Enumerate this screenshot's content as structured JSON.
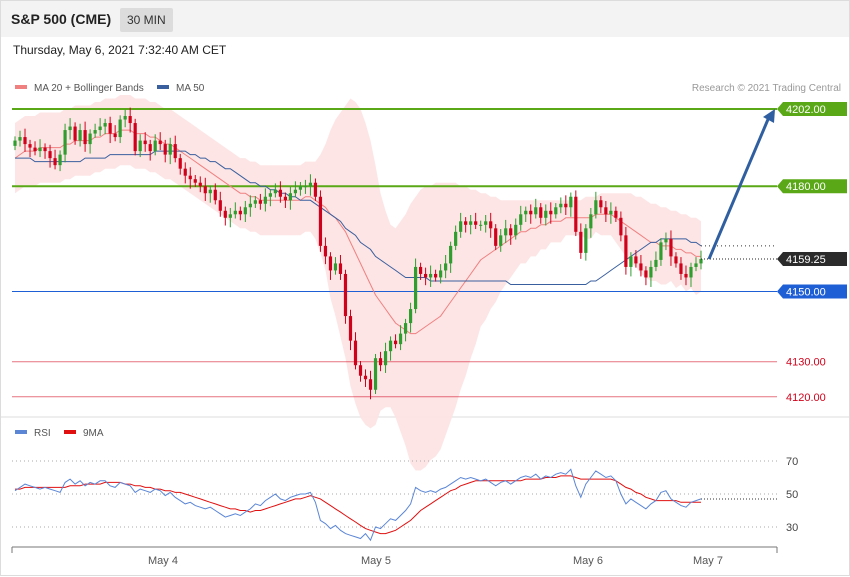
{
  "header": {
    "title": "S&P 500 (CME)",
    "timeframe": "30 MIN"
  },
  "datetime": "Thursday, May 6, 2021 7:32:40 AM CET",
  "colors": {
    "up_candle": "#2f9e2f",
    "down_candle": "#d0021b",
    "band_fill": "#fde2e2",
    "ma20": "#f08080",
    "ma50": "#3a5f9e",
    "resistance": "#5aa817",
    "support": "#1f5fd6",
    "lower_levels": "#d0021b",
    "arrow": "#2f5fa0",
    "rsi": "#5b86d6",
    "rsi_ma": "#e01010"
  },
  "chart_data": [
    {
      "type": "candlestick",
      "legend": [
        {
          "name": "MA 20 + Bollinger Bands",
          "color": "#f08080"
        },
        {
          "name": "MA 50",
          "color": "#3a5f9e"
        }
      ],
      "credit": "Research © 2021 Trading Central",
      "x_ticks": [
        "May 4",
        "May 5",
        "May 6",
        "May 7"
      ],
      "ylim": [
        4110,
        4210
      ],
      "current_price": {
        "value": 4159.25,
        "label": "4159.25"
      },
      "levels": [
        {
          "value": 4202.0,
          "label": "4202.00",
          "kind": "resistance"
        },
        {
          "value": 4180.0,
          "label": "4180.00",
          "kind": "resistance"
        },
        {
          "value": 4150.0,
          "label": "4150.00",
          "kind": "support"
        },
        {
          "value": 4130.0,
          "label": "4130.00",
          "kind": "lower"
        },
        {
          "value": 4120.0,
          "label": "4120.00",
          "kind": "lower"
        }
      ],
      "arrow": {
        "from": 4159.25,
        "to": 4202.0
      },
      "closes": [
        4193,
        4194,
        4192,
        4191,
        4190,
        4191,
        4190,
        4188,
        4186,
        4189,
        4196,
        4197,
        4193,
        4196,
        4192,
        4195,
        4196,
        4197,
        4198,
        4195,
        4194,
        4199,
        4200,
        4198,
        4190,
        4193,
        4192,
        4190,
        4193,
        4192,
        4189,
        4192,
        4188,
        4185,
        4183,
        4182,
        4181,
        4180,
        4178,
        4179,
        4176,
        4173,
        4171,
        4172,
        4173,
        4172,
        4174,
        4175,
        4176,
        4175,
        4177,
        4178,
        4179,
        4177,
        4176,
        4178,
        4179,
        4180,
        4180,
        4181,
        4177,
        4163,
        4160,
        4156,
        4158,
        4155,
        4143,
        4136,
        4129,
        4126,
        4125,
        4122,
        4131,
        4129,
        4133,
        4136,
        4135,
        4138,
        4141,
        4145,
        4157,
        4155,
        4154,
        4155,
        4154,
        4156,
        4158,
        4163,
        4167,
        4170,
        4169,
        4170,
        4169,
        4169,
        4170,
        4168,
        4163,
        4166,
        4168,
        4166,
        4169,
        4172,
        4173,
        4172,
        4174,
        4171,
        4173,
        4172,
        4174,
        4175,
        4174,
        4177,
        4167,
        4161,
        4168,
        4172,
        4176,
        4174,
        4172,
        4173,
        4171,
        4166,
        4157,
        4160,
        4158,
        4156,
        4154,
        4157,
        4159,
        4164,
        4165,
        4160,
        4158,
        4155,
        4154,
        4157,
        4158,
        4159.25
      ],
      "ma20": [
        4188,
        4189,
        4190,
        4190,
        4190,
        4191,
        4191,
        4191,
        4191,
        4191,
        4192,
        4192,
        4193,
        4193,
        4193,
        4193,
        4194,
        4194,
        4195,
        4195,
        4195,
        4196,
        4196,
        4196,
        4195,
        4195,
        4195,
        4194,
        4194,
        4193,
        4192,
        4192,
        4191,
        4190,
        4189,
        4188,
        4187,
        4186,
        4185,
        4184,
        4183,
        4182,
        4181,
        4180,
        4179,
        4178,
        4178,
        4177,
        4177,
        4176,
        4176,
        4176,
        4176,
        4176,
        4176,
        4176,
        4176,
        4176,
        4177,
        4177,
        4176,
        4175,
        4174,
        4172,
        4171,
        4169,
        4167,
        4164,
        4161,
        4158,
        4155,
        4152,
        4149,
        4147,
        4145,
        4143,
        4141,
        4140,
        4139,
        4138,
        4138,
        4139,
        4140,
        4141,
        4142,
        4143,
        4145,
        4147,
        4149,
        4151,
        4153,
        4155,
        4157,
        4159,
        4160,
        4161,
        4162,
        4163,
        4164,
        4165,
        4166,
        4167,
        4167,
        4168,
        4168,
        4169,
        4169,
        4170,
        4170,
        4170,
        4171,
        4171,
        4171,
        4171,
        4171,
        4171,
        4172,
        4172,
        4172,
        4172,
        4171,
        4170,
        4169,
        4168,
        4167,
        4166,
        4165,
        4164,
        4164,
        4163,
        4163,
        4163,
        4162,
        4162,
        4161,
        4161,
        4160,
        4160
      ],
      "bb_upper": [
        4198,
        4199,
        4200,
        4200,
        4200,
        4201,
        4201,
        4201,
        4201,
        4201,
        4202,
        4202,
        4203,
        4203,
        4203,
        4203,
        4204,
        4204,
        4205,
        4205,
        4205,
        4206,
        4206,
        4206,
        4205,
        4205,
        4205,
        4204,
        4204,
        4203,
        4202,
        4202,
        4201,
        4200,
        4199,
        4198,
        4197,
        4196,
        4195,
        4194,
        4193,
        4192,
        4191,
        4190,
        4189,
        4188,
        4188,
        4187,
        4187,
        4186,
        4186,
        4186,
        4186,
        4186,
        4186,
        4186,
        4186,
        4186,
        4187,
        4187,
        4187,
        4189,
        4192,
        4196,
        4199,
        4201,
        4203,
        4205,
        4204,
        4202,
        4198,
        4193,
        4186,
        4178,
        4173,
        4169,
        4168,
        4170,
        4172,
        4175,
        4177,
        4179,
        4180,
        4180,
        4181,
        4181,
        4181,
        4181,
        4181,
        4180,
        4180,
        4179,
        4179,
        4178,
        4178,
        4177,
        4177,
        4176,
        4176,
        4176,
        4176,
        4176,
        4176,
        4176,
        4176,
        4176,
        4176,
        4176,
        4176,
        4176,
        4176,
        4176,
        4176,
        4176,
        4177,
        4177,
        4177,
        4178,
        4178,
        4178,
        4178,
        4178,
        4178,
        4178,
        4177,
        4177,
        4176,
        4175,
        4175,
        4174,
        4174,
        4173,
        4173,
        4172,
        4172,
        4171,
        4171,
        4170
      ],
      "bb_lower": [
        4178,
        4179,
        4180,
        4180,
        4180,
        4181,
        4181,
        4181,
        4181,
        4181,
        4182,
        4182,
        4183,
        4183,
        4183,
        4183,
        4184,
        4184,
        4185,
        4185,
        4185,
        4186,
        4186,
        4186,
        4185,
        4185,
        4185,
        4184,
        4184,
        4183,
        4182,
        4182,
        4181,
        4180,
        4179,
        4178,
        4177,
        4176,
        4175,
        4174,
        4173,
        4172,
        4171,
        4170,
        4169,
        4168,
        4168,
        4167,
        4167,
        4166,
        4166,
        4166,
        4166,
        4166,
        4166,
        4166,
        4166,
        4166,
        4167,
        4167,
        4165,
        4161,
        4156,
        4148,
        4143,
        4137,
        4131,
        4123,
        4118,
        4114,
        4112,
        4111,
        4112,
        4116,
        4117,
        4117,
        4114,
        4110,
        4106,
        4101,
        4099,
        4099,
        4100,
        4102,
        4103,
        4105,
        4109,
        4113,
        4117,
        4122,
        4126,
        4131,
        4135,
        4140,
        4142,
        4145,
        4147,
        4150,
        4152,
        4154,
        4156,
        4158,
        4158,
        4160,
        4160,
        4162,
        4162,
        4164,
        4164,
        4164,
        4166,
        4166,
        4166,
        4166,
        4165,
        4165,
        4167,
        4166,
        4166,
        4166,
        4164,
        4162,
        4160,
        4158,
        4157,
        4155,
        4154,
        4153,
        4153,
        4152,
        4152,
        4153,
        4151,
        4152,
        4150,
        4151,
        4149,
        4150
      ],
      "ma50": [
        4188,
        4188,
        4188,
        4188,
        4187,
        4187,
        4187,
        4187,
        4187,
        4187,
        4187,
        4187,
        4187,
        4187,
        4188,
        4188,
        4188,
        4188,
        4188,
        4189,
        4189,
        4189,
        4189,
        4189,
        4189,
        4189,
        4189,
        4189,
        4190,
        4190,
        4190,
        4190,
        4190,
        4190,
        4190,
        4189,
        4189,
        4188,
        4188,
        4187,
        4187,
        4186,
        4185,
        4185,
        4184,
        4183,
        4182,
        4181,
        4181,
        4180,
        4180,
        4179,
        4179,
        4178,
        4178,
        4177,
        4177,
        4176,
        4176,
        4176,
        4175,
        4174,
        4173,
        4172,
        4171,
        4170,
        4168,
        4167,
        4166,
        4164,
        4163,
        4162,
        4160,
        4159,
        4158,
        4157,
        4156,
        4155,
        4154,
        4154,
        4154,
        4154,
        4154,
        4153,
        4153,
        4153,
        4153,
        4153,
        4153,
        4153,
        4153,
        4153,
        4153,
        4153,
        4153,
        4153,
        4153,
        4153,
        4153,
        4152,
        4152,
        4152,
        4152,
        4152,
        4152,
        4152,
        4152,
        4152,
        4152,
        4152,
        4152,
        4152,
        4152,
        4152,
        4152,
        4153,
        4153,
        4154,
        4155,
        4156,
        4157,
        4158,
        4159,
        4160,
        4161,
        4162,
        4163,
        4164,
        4164,
        4165,
        4165,
        4165,
        4165,
        4165,
        4165,
        4164,
        4164,
        4163
      ]
    },
    {
      "type": "line",
      "legend": [
        {
          "name": "RSI",
          "color": "#5b86d6"
        },
        {
          "name": "9MA",
          "color": "#e01010"
        }
      ],
      "y_ticks": [
        70,
        50,
        30
      ],
      "ylim": [
        20,
        80
      ],
      "rsi": [
        52,
        54,
        56,
        55,
        54,
        53,
        54,
        53,
        52,
        51,
        57,
        59,
        56,
        58,
        55,
        57,
        56,
        58,
        58,
        55,
        54,
        57,
        56,
        55,
        51,
        53,
        52,
        51,
        53,
        52,
        49,
        51,
        48,
        46,
        44,
        45,
        43,
        42,
        41,
        42,
        40,
        38,
        36,
        37,
        38,
        37,
        39,
        41,
        44,
        43,
        46,
        48,
        50,
        47,
        46,
        48,
        49,
        50,
        50,
        51,
        45,
        34,
        32,
        29,
        31,
        28,
        26,
        25,
        24,
        23,
        26,
        22,
        30,
        29,
        32,
        35,
        34,
        37,
        40,
        44,
        54,
        52,
        51,
        52,
        51,
        53,
        54,
        56,
        58,
        60,
        59,
        60,
        59,
        58,
        59,
        57,
        55,
        57,
        58,
        56,
        58,
        60,
        61,
        60,
        62,
        59,
        61,
        60,
        62,
        63,
        62,
        65,
        55,
        48,
        56,
        60,
        64,
        62,
        60,
        61,
        58,
        50,
        44,
        47,
        45,
        43,
        41,
        44,
        46,
        51,
        52,
        47,
        45,
        43,
        42,
        45,
        46,
        47
      ],
      "rsi_ma": [
        53,
        53,
        54,
        54,
        54,
        54,
        54,
        54,
        54,
        54,
        54,
        55,
        55,
        55,
        56,
        56,
        56,
        56,
        57,
        57,
        57,
        57,
        56,
        56,
        55,
        55,
        54,
        54,
        53,
        53,
        52,
        52,
        51,
        51,
        50,
        49,
        48,
        47,
        46,
        45,
        44,
        43,
        42,
        41,
        41,
        40,
        40,
        39,
        40,
        40,
        41,
        42,
        43,
        44,
        45,
        46,
        47,
        47,
        48,
        49,
        48,
        47,
        45,
        43,
        41,
        39,
        37,
        35,
        33,
        31,
        29,
        28,
        27,
        26,
        26,
        27,
        28,
        30,
        32,
        34,
        37,
        40,
        42,
        44,
        46,
        48,
        50,
        52,
        53,
        55,
        56,
        57,
        58,
        58,
        58,
        58,
        58,
        58,
        58,
        58,
        58,
        58,
        59,
        59,
        59,
        59,
        60,
        60,
        60,
        61,
        61,
        61,
        60,
        59,
        59,
        59,
        59,
        59,
        59,
        59,
        58,
        56,
        54,
        53,
        51,
        50,
        48,
        47,
        46,
        46,
        46,
        46,
        46,
        45,
        45,
        45,
        45,
        45
      ]
    }
  ]
}
